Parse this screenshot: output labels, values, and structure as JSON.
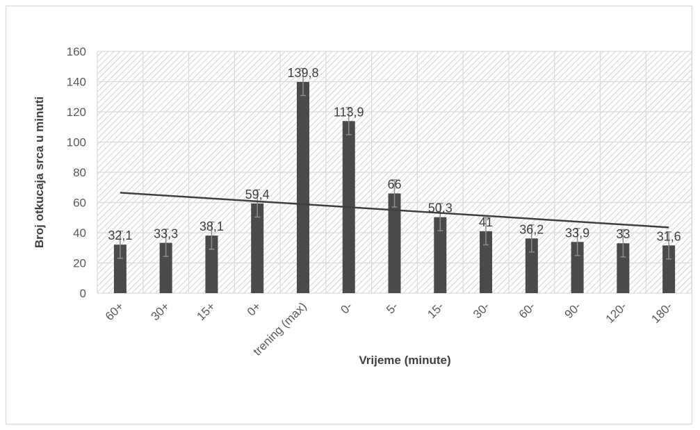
{
  "chart_data": {
    "type": "bar",
    "title": "",
    "xlabel": "Vrijeme (minute)",
    "ylabel": "Broj otkucaja srca u minuti",
    "ylim": [
      0,
      160
    ],
    "y_ticks": [
      "0",
      "20",
      "40",
      "60",
      "80",
      "100",
      "120",
      "140",
      "160"
    ],
    "grid": true,
    "legend": "none",
    "categories": [
      "60+",
      "30+",
      "15+",
      "0+",
      "trening (max)",
      "0-",
      "5-",
      "15-",
      "30-",
      "60-",
      "90-",
      "120-",
      "180-"
    ],
    "values": [
      32.1,
      33.3,
      38.1,
      59.4,
      139.8,
      113.9,
      66,
      50.3,
      41,
      36.2,
      33.9,
      33,
      31.6
    ],
    "data_labels": [
      "32,1",
      "33,3",
      "38,1",
      "59,4",
      "139,8",
      "113,9",
      "66",
      "50,3",
      "41",
      "36,2",
      "33,9",
      "33",
      "31,6"
    ],
    "error": [
      9,
      9,
      9,
      9,
      9,
      9,
      9,
      9,
      9,
      9,
      9,
      9,
      9
    ],
    "trendline": {
      "type": "linear",
      "start": 66.5,
      "end": 43.5
    },
    "colors": {
      "bar": "#4a4a4a",
      "trend": "#3f3f3f",
      "error": "#8c8c8c",
      "grid": "#d9d9d9",
      "hatch": "#c8c8c8"
    }
  }
}
